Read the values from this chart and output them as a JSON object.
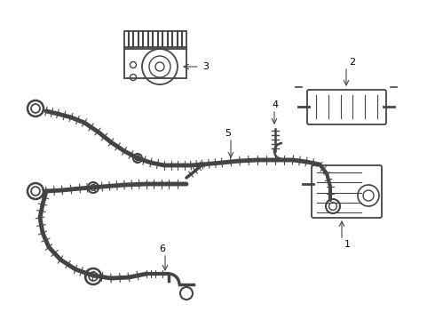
{
  "bg_color": "#ffffff",
  "line_color": "#444444",
  "label_color": "#000000",
  "figsize": [
    4.9,
    3.6
  ],
  "dpi": 100
}
